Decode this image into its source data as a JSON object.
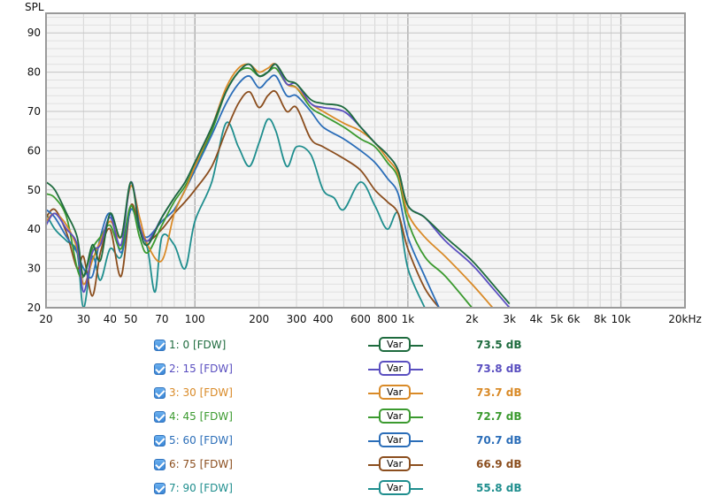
{
  "chart_data": {
    "type": "line",
    "ylabel": "SPL",
    "xlabel": "",
    "x_scale": "log",
    "xlim": [
      20,
      20000
    ],
    "ylim": [
      20,
      95
    ],
    "grid": true,
    "x_ticks": [
      {
        "v": 20,
        "label": "20"
      },
      {
        "v": 30,
        "label": "30"
      },
      {
        "v": 40,
        "label": "40"
      },
      {
        "v": 50,
        "label": "50"
      },
      {
        "v": 70,
        "label": "70"
      },
      {
        "v": 100,
        "label": "100"
      },
      {
        "v": 200,
        "label": "200"
      },
      {
        "v": 300,
        "label": "300"
      },
      {
        "v": 400,
        "label": "400"
      },
      {
        "v": 600,
        "label": "600"
      },
      {
        "v": 800,
        "label": "800"
      },
      {
        "v": 1000,
        "label": "1k"
      },
      {
        "v": 2000,
        "label": "2k"
      },
      {
        "v": 3000,
        "label": "3k"
      },
      {
        "v": 4000,
        "label": "4k"
      },
      {
        "v": 5000,
        "label": "5k"
      },
      {
        "v": 6000,
        "label": "6k"
      },
      {
        "v": 8000,
        "label": "8k"
      },
      {
        "v": 10000,
        "label": "10k"
      },
      {
        "v": 20000,
        "label": "20kHz"
      }
    ],
    "y_ticks": [
      20,
      30,
      40,
      50,
      60,
      70,
      80,
      90
    ],
    "series": [
      {
        "name": "1: 0 [FDW]",
        "color": "#1e6b3e",
        "avg": "73.5 dB",
        "points": [
          [
            20,
            52
          ],
          [
            22,
            50
          ],
          [
            25,
            44
          ],
          [
            28,
            38
          ],
          [
            30,
            28
          ],
          [
            33,
            36
          ],
          [
            36,
            32
          ],
          [
            40,
            44
          ],
          [
            45,
            38
          ],
          [
            50,
            52
          ],
          [
            55,
            40
          ],
          [
            60,
            36
          ],
          [
            70,
            43
          ],
          [
            80,
            48
          ],
          [
            90,
            52
          ],
          [
            100,
            57
          ],
          [
            120,
            66
          ],
          [
            140,
            75
          ],
          [
            160,
            80
          ],
          [
            180,
            82
          ],
          [
            200,
            79
          ],
          [
            220,
            80
          ],
          [
            240,
            82
          ],
          [
            270,
            78
          ],
          [
            300,
            77
          ],
          [
            350,
            73
          ],
          [
            400,
            72
          ],
          [
            500,
            71
          ],
          [
            600,
            66
          ],
          [
            700,
            62
          ],
          [
            800,
            59
          ],
          [
            900,
            55
          ],
          [
            1000,
            46
          ],
          [
            1200,
            43
          ],
          [
            1500,
            38
          ],
          [
            2000,
            32
          ],
          [
            2500,
            26
          ],
          [
            3000,
            21
          ]
        ]
      },
      {
        "name": "2: 15 [FDW]",
        "color": "#5a4fc0",
        "avg": "73.8 dB",
        "points": [
          [
            20,
            41
          ],
          [
            22,
            44
          ],
          [
            25,
            40
          ],
          [
            28,
            36
          ],
          [
            30,
            24
          ],
          [
            33,
            34
          ],
          [
            36,
            36
          ],
          [
            40,
            43
          ],
          [
            45,
            36
          ],
          [
            50,
            52
          ],
          [
            55,
            41
          ],
          [
            60,
            37
          ],
          [
            70,
            43
          ],
          [
            80,
            48
          ],
          [
            90,
            52
          ],
          [
            100,
            57
          ],
          [
            120,
            66
          ],
          [
            140,
            75
          ],
          [
            160,
            80
          ],
          [
            180,
            82
          ],
          [
            200,
            79
          ],
          [
            220,
            80
          ],
          [
            240,
            82
          ],
          [
            270,
            77
          ],
          [
            300,
            77
          ],
          [
            350,
            72
          ],
          [
            400,
            71
          ],
          [
            500,
            70
          ],
          [
            600,
            66
          ],
          [
            700,
            62
          ],
          [
            800,
            59
          ],
          [
            900,
            55
          ],
          [
            1000,
            46
          ],
          [
            1200,
            43
          ],
          [
            1500,
            37
          ],
          [
            2000,
            31
          ],
          [
            2500,
            25
          ],
          [
            3000,
            20
          ]
        ]
      },
      {
        "name": "3: 30 [FDW]",
        "color": "#d98a27",
        "avg": "73.7 dB",
        "points": [
          [
            20,
            42
          ],
          [
            22,
            44
          ],
          [
            25,
            41
          ],
          [
            28,
            35
          ],
          [
            30,
            26
          ],
          [
            33,
            32
          ],
          [
            36,
            37
          ],
          [
            40,
            42
          ],
          [
            45,
            38
          ],
          [
            50,
            51
          ],
          [
            55,
            43
          ],
          [
            60,
            36
          ],
          [
            70,
            32
          ],
          [
            80,
            44
          ],
          [
            90,
            50
          ],
          [
            100,
            56
          ],
          [
            120,
            66
          ],
          [
            140,
            76
          ],
          [
            160,
            81
          ],
          [
            180,
            82
          ],
          [
            200,
            80
          ],
          [
            220,
            81
          ],
          [
            240,
            82
          ],
          [
            270,
            77
          ],
          [
            300,
            76
          ],
          [
            350,
            72
          ],
          [
            400,
            70
          ],
          [
            500,
            67
          ],
          [
            600,
            65
          ],
          [
            700,
            62
          ],
          [
            800,
            58
          ],
          [
            900,
            54
          ],
          [
            1000,
            44
          ],
          [
            1200,
            38
          ],
          [
            1500,
            33
          ],
          [
            2000,
            26
          ],
          [
            2500,
            20
          ]
        ]
      },
      {
        "name": "4: 45 [FDW]",
        "color": "#3b9a2f",
        "avg": "72.7 dB",
        "points": [
          [
            20,
            49
          ],
          [
            22,
            48
          ],
          [
            25,
            43
          ],
          [
            28,
            30
          ],
          [
            30,
            28
          ],
          [
            33,
            35
          ],
          [
            36,
            38
          ],
          [
            40,
            41
          ],
          [
            45,
            35
          ],
          [
            50,
            46
          ],
          [
            55,
            38
          ],
          [
            60,
            34
          ],
          [
            70,
            41
          ],
          [
            80,
            47
          ],
          [
            90,
            51
          ],
          [
            100,
            56
          ],
          [
            120,
            65
          ],
          [
            140,
            75
          ],
          [
            160,
            80
          ],
          [
            180,
            81
          ],
          [
            200,
            79
          ],
          [
            220,
            80
          ],
          [
            240,
            81
          ],
          [
            270,
            77
          ],
          [
            300,
            76
          ],
          [
            350,
            71
          ],
          [
            400,
            69
          ],
          [
            500,
            66
          ],
          [
            600,
            63
          ],
          [
            700,
            61
          ],
          [
            800,
            57
          ],
          [
            900,
            53
          ],
          [
            1000,
            42
          ],
          [
            1200,
            33
          ],
          [
            1500,
            28
          ],
          [
            2000,
            20
          ]
        ]
      },
      {
        "name": "5: 60 [FDW]",
        "color": "#2a6db8",
        "avg": "70.7 dB",
        "points": [
          [
            20,
            45
          ],
          [
            22,
            43
          ],
          [
            25,
            38
          ],
          [
            28,
            34
          ],
          [
            30,
            30
          ],
          [
            33,
            28
          ],
          [
            36,
            38
          ],
          [
            40,
            44
          ],
          [
            45,
            34
          ],
          [
            50,
            45
          ],
          [
            55,
            40
          ],
          [
            60,
            38
          ],
          [
            70,
            42
          ],
          [
            80,
            45
          ],
          [
            90,
            50
          ],
          [
            100,
            55
          ],
          [
            120,
            64
          ],
          [
            140,
            72
          ],
          [
            160,
            77
          ],
          [
            180,
            79
          ],
          [
            200,
            76
          ],
          [
            220,
            78
          ],
          [
            240,
            79
          ],
          [
            270,
            74
          ],
          [
            300,
            74
          ],
          [
            350,
            70
          ],
          [
            400,
            66
          ],
          [
            500,
            63
          ],
          [
            600,
            60
          ],
          [
            700,
            57
          ],
          [
            800,
            53
          ],
          [
            900,
            49
          ],
          [
            1000,
            38
          ],
          [
            1200,
            28
          ],
          [
            1400,
            20
          ]
        ]
      },
      {
        "name": "6: 75 [FDW]",
        "color": "#8b4e1e",
        "avg": "66.9 dB",
        "points": [
          [
            20,
            43
          ],
          [
            22,
            45
          ],
          [
            25,
            39
          ],
          [
            28,
            30
          ],
          [
            30,
            33
          ],
          [
            33,
            23
          ],
          [
            36,
            34
          ],
          [
            40,
            40
          ],
          [
            45,
            28
          ],
          [
            50,
            46
          ],
          [
            55,
            40
          ],
          [
            60,
            37
          ],
          [
            70,
            40
          ],
          [
            80,
            44
          ],
          [
            90,
            47
          ],
          [
            100,
            50
          ],
          [
            120,
            56
          ],
          [
            140,
            65
          ],
          [
            160,
            72
          ],
          [
            180,
            75
          ],
          [
            200,
            71
          ],
          [
            220,
            74
          ],
          [
            240,
            75
          ],
          [
            270,
            70
          ],
          [
            300,
            71
          ],
          [
            350,
            63
          ],
          [
            400,
            61
          ],
          [
            500,
            58
          ],
          [
            600,
            55
          ],
          [
            700,
            50
          ],
          [
            800,
            47
          ],
          [
            900,
            44
          ],
          [
            1000,
            35
          ],
          [
            1200,
            25
          ],
          [
            1400,
            20
          ]
        ]
      },
      {
        "name": "7: 90 [FDW]",
        "color": "#1f8e8e",
        "avg": "55.8 dB",
        "points": [
          [
            20,
            44
          ],
          [
            22,
            40
          ],
          [
            25,
            37
          ],
          [
            28,
            34
          ],
          [
            30,
            20
          ],
          [
            33,
            33
          ],
          [
            36,
            27
          ],
          [
            40,
            35
          ],
          [
            45,
            33
          ],
          [
            50,
            45
          ],
          [
            55,
            40
          ],
          [
            60,
            35
          ],
          [
            65,
            24
          ],
          [
            70,
            38
          ],
          [
            80,
            36
          ],
          [
            90,
            30
          ],
          [
            100,
            42
          ],
          [
            120,
            52
          ],
          [
            140,
            67
          ],
          [
            160,
            61
          ],
          [
            180,
            56
          ],
          [
            200,
            62
          ],
          [
            220,
            68
          ],
          [
            240,
            65
          ],
          [
            270,
            56
          ],
          [
            300,
            61
          ],
          [
            350,
            59
          ],
          [
            400,
            50
          ],
          [
            450,
            48
          ],
          [
            500,
            45
          ],
          [
            600,
            52
          ],
          [
            700,
            46
          ],
          [
            800,
            40
          ],
          [
            900,
            44
          ],
          [
            1000,
            30
          ],
          [
            1200,
            20
          ]
        ]
      }
    ]
  },
  "legend": {
    "var_label": "Var",
    "items": [
      {
        "label": "1: 0 [FDW]",
        "value": "73.5 dB",
        "color": "#1e6b3e"
      },
      {
        "label": "2: 15 [FDW]",
        "value": "73.8 dB",
        "color": "#5a4fc0"
      },
      {
        "label": "3: 30 [FDW]",
        "value": "73.7 dB",
        "color": "#d98a27"
      },
      {
        "label": "4: 45 [FDW]",
        "value": "72.7 dB",
        "color": "#3b9a2f"
      },
      {
        "label": "5: 60 [FDW]",
        "value": "70.7 dB",
        "color": "#2a6db8"
      },
      {
        "label": "6: 75 [FDW]",
        "value": "66.9 dB",
        "color": "#8b4e1e"
      },
      {
        "label": "7: 90 [FDW]",
        "value": "55.8 dB",
        "color": "#1f8e8e"
      }
    ]
  }
}
